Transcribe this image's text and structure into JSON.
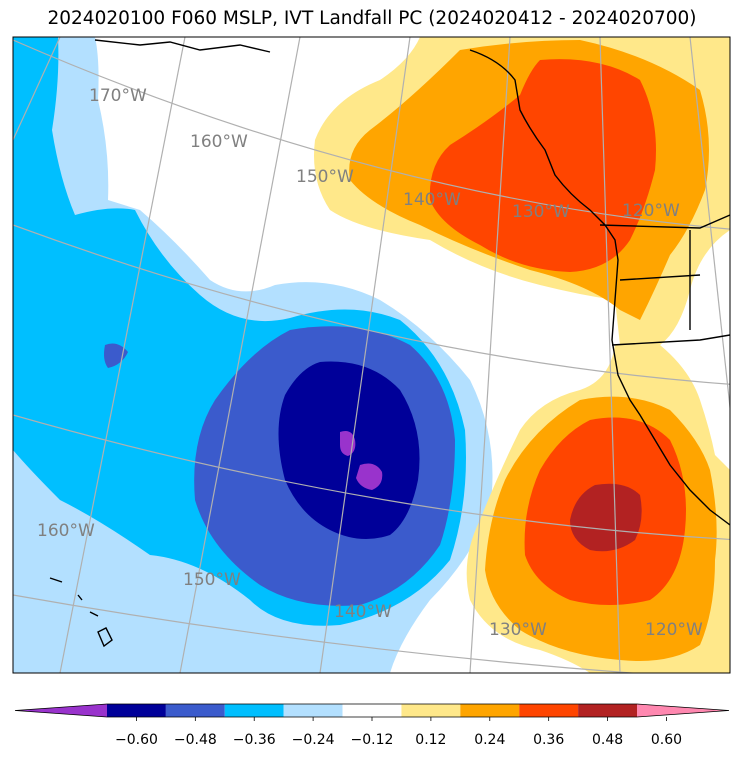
{
  "title": "2024020100 F060 MSLP, IVT Landfall PC (2024020412 - 2024020700)",
  "map": {
    "graticule_color": "#b0b0b0",
    "coastline_color": "#000000",
    "longitude_labels": [
      {
        "text": "170°W"
      },
      {
        "text": "160°W"
      },
      {
        "text": "150°W"
      },
      {
        "text": "140°W"
      },
      {
        "text": "130°W"
      },
      {
        "text": "120°W"
      },
      {
        "text": "160°W"
      },
      {
        "text": "150°W"
      },
      {
        "text": "140°W"
      },
      {
        "text": "130°W"
      },
      {
        "text": "120°W"
      }
    ]
  },
  "colorbar": {
    "colors": [
      "#9933cc",
      "#000099",
      "#3b5bcc",
      "#00bfff",
      "#b3e0ff",
      "#ffffff",
      "#ffe88a",
      "#ffa500",
      "#ff4500",
      "#b22222",
      "#ff88b0"
    ],
    "tick_labels": [
      "−0.60",
      "−0.48",
      "−0.36",
      "−0.24",
      "−0.12",
      "0.12",
      "0.24",
      "0.36",
      "0.48",
      "0.60"
    ]
  }
}
